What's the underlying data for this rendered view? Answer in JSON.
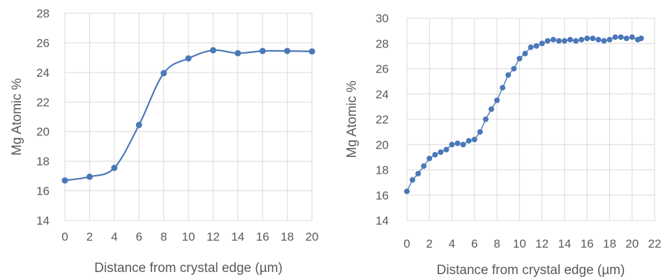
{
  "chart_data": [
    {
      "type": "line",
      "smooth": true,
      "markers": true,
      "color": "#4a78b8",
      "xlabel": "Distance from crystal edge (µm)",
      "ylabel": "Mg Atomic %",
      "xlim": [
        0,
        20
      ],
      "ylim": [
        14,
        28
      ],
      "xticks": [
        0,
        2,
        4,
        6,
        8,
        10,
        12,
        14,
        16,
        18,
        20
      ],
      "yticks": [
        14,
        16,
        18,
        20,
        22,
        24,
        26,
        28
      ],
      "grid": true,
      "series": [
        {
          "x": [
            0,
            2,
            4,
            6,
            8,
            10,
            12,
            14,
            16,
            18,
            20
          ],
          "y": [
            16.7,
            16.95,
            17.55,
            20.45,
            23.95,
            24.95,
            25.5,
            25.3,
            25.45,
            25.45,
            25.42
          ]
        }
      ]
    },
    {
      "type": "scatter",
      "markers": true,
      "color": "#4a78b8",
      "xlabel": "Distance from crystal edge (µm)",
      "ylabel": "Mg Atomic %",
      "xlim": [
        0,
        22
      ],
      "ylim": [
        14,
        30
      ],
      "xticks": [
        0,
        2,
        4,
        6,
        8,
        10,
        12,
        14,
        16,
        18,
        20,
        22
      ],
      "yticks": [
        14,
        16,
        18,
        20,
        22,
        24,
        26,
        28,
        30
      ],
      "grid": true,
      "series": [
        {
          "x": [
            0,
            0.5,
            1,
            1.5,
            2,
            2.5,
            3,
            3.5,
            4,
            4.5,
            5,
            5.5,
            6,
            6.5,
            7,
            7.5,
            8,
            8.5,
            9,
            9.5,
            10,
            10.5,
            11,
            11.5,
            12,
            12.5,
            13,
            13.5,
            14,
            14.5,
            15,
            15.5,
            16,
            16.5,
            17,
            17.5,
            18,
            18.5,
            19,
            19.5,
            20,
            20.5,
            20.8
          ],
          "y": [
            16.3,
            17.2,
            17.7,
            18.3,
            18.9,
            19.2,
            19.4,
            19.6,
            20.0,
            20.1,
            20.0,
            20.3,
            20.4,
            21.0,
            22.0,
            22.8,
            23.5,
            24.5,
            25.5,
            26.0,
            26.8,
            27.2,
            27.7,
            27.8,
            28.0,
            28.2,
            28.3,
            28.2,
            28.2,
            28.3,
            28.2,
            28.3,
            28.4,
            28.4,
            28.3,
            28.2,
            28.3,
            28.5,
            28.5,
            28.4,
            28.5,
            28.3,
            28.4
          ]
        }
      ]
    }
  ]
}
